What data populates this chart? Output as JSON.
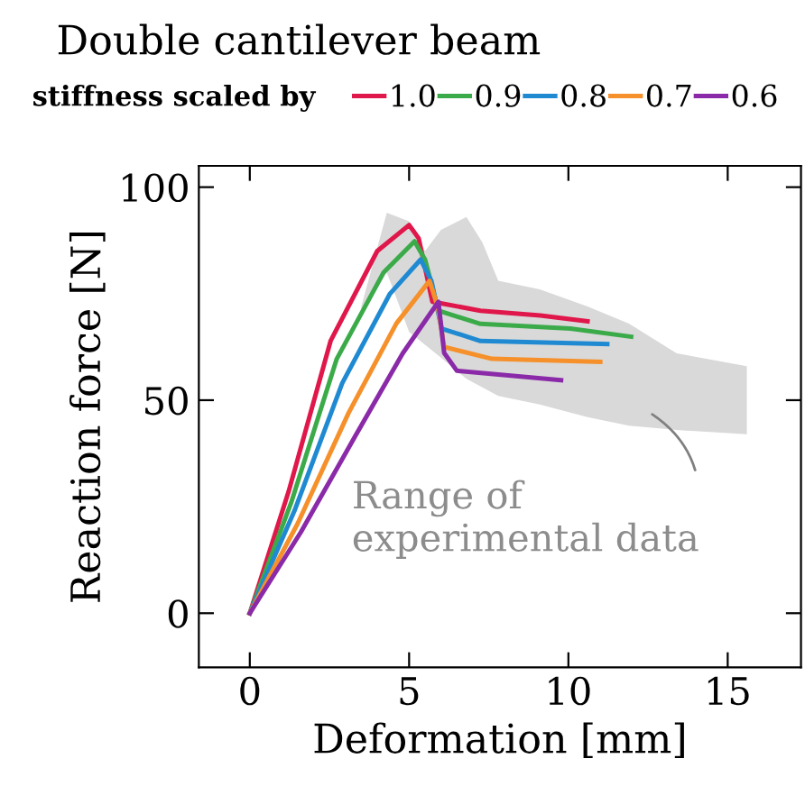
{
  "chart_data": {
    "type": "line",
    "title": "Double cantilever beam",
    "legend_title": "stiffness scaled by",
    "xlabel": "Deformation [mm]",
    "ylabel": "Reaction force [N]",
    "xlim": [
      -1.6,
      17.3
    ],
    "ylim": [
      -12.7,
      105
    ],
    "xticks": [
      0,
      5,
      10,
      15
    ],
    "yticks": [
      0,
      50,
      100
    ],
    "grid": false,
    "legend": "top",
    "marker": "none",
    "line_style": "solid",
    "series": [
      {
        "type": "area",
        "color": "#d9d9d9",
        "x": [
          3.5,
          4.3,
          5.0,
          5.5,
          6.0,
          6.8,
          7.3,
          7.8,
          9.1,
          10.6,
          11.9,
          13.4,
          15.6
        ],
        "lower": [
          70,
          80,
          66,
          63,
          60,
          55,
          53,
          51,
          49,
          46,
          44,
          43,
          42
        ],
        "upper": [
          72,
          94,
          92,
          85,
          90,
          93,
          87,
          78,
          76,
          72,
          68,
          61,
          58
        ],
        "values": [
          null,
          null,
          null,
          null,
          null,
          null,
          null,
          null,
          null,
          null,
          null,
          null,
          null
        ]
      },
      {
        "name": "1.0",
        "color": "#e0174a",
        "x": [
          0,
          1.22,
          2.54,
          4.0,
          5.0,
          5.3,
          5.73,
          7.24,
          9.12,
          10.6
        ],
        "values": [
          0,
          28.6,
          64,
          85,
          91.1,
          88,
          73.1,
          71,
          69.9,
          68.5
        ]
      },
      {
        "name": "0.9",
        "color": "#3bab4a",
        "x": [
          0,
          1.3,
          2.73,
          4.2,
          5.17,
          5.5,
          5.92,
          7.24,
          10.06,
          11.97
        ],
        "values": [
          0,
          26,
          59.7,
          80,
          87.3,
          83,
          71,
          67.9,
          66.8,
          64.9
        ]
      },
      {
        "name": "0.8",
        "color": "#1f8ad1",
        "x": [
          0,
          1.4,
          2.9,
          4.4,
          5.36,
          5.7,
          6.02,
          7.24,
          11.22
        ],
        "values": [
          0,
          24,
          54,
          75,
          83,
          78,
          66.8,
          63.9,
          63.2
        ]
      },
      {
        "name": "0.7",
        "color": "#f5902a",
        "x": [
          0,
          1.5,
          3.1,
          4.6,
          5.64,
          5.9,
          6.1,
          7.6,
          11.0
        ],
        "values": [
          0,
          21,
          47,
          68,
          78,
          72,
          62.5,
          59.7,
          59.0
        ]
      },
      {
        "name": "0.6",
        "color": "#8a2aa8",
        "x": [
          0,
          1.6,
          3.29,
          4.8,
          5.92,
          6.1,
          6.5,
          9.77
        ],
        "values": [
          0,
          19,
          41.3,
          61,
          73.1,
          61.1,
          56.9,
          54.7
        ]
      }
    ],
    "annotations": [
      "Range of\nexperimental data"
    ]
  }
}
